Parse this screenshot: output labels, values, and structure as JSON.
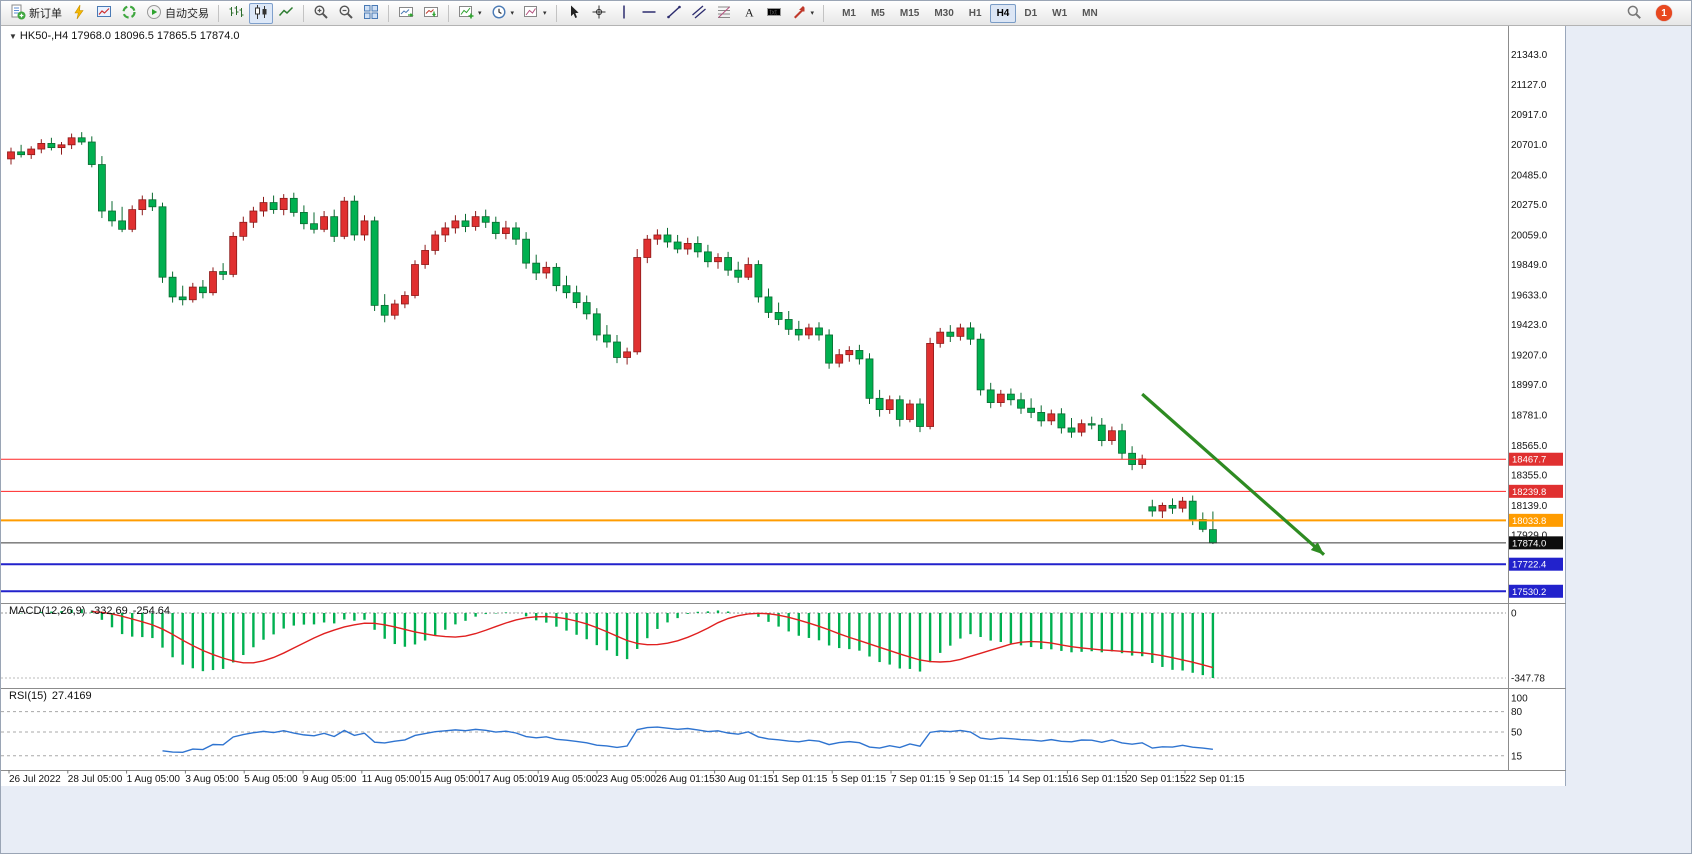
{
  "toolbar": {
    "new_order_label": "新订单",
    "auto_trading_label": "自动交易",
    "timeframes": [
      "M1",
      "M5",
      "M15",
      "M30",
      "H1",
      "H4",
      "D1",
      "W1",
      "MN"
    ],
    "active_timeframe": "H4",
    "notification_count": "1"
  },
  "chart": {
    "header": "HK50-,H4 17968.0 18096.5 17865.5 17874.0"
  },
  "chart_data": {
    "type": "candlestick",
    "symbol": "HK50-",
    "timeframe": "H4",
    "title": "HK50-,H4",
    "current_bar": {
      "open": 17968.0,
      "high": 18096.5,
      "low": 17865.5,
      "close": 17874.0
    },
    "bull_color": "#e03030",
    "bear_color": "#00b050",
    "background": "#ffffff",
    "price_axis_labels": [
      21343.0,
      21127.0,
      20917.0,
      20701.0,
      20485.0,
      20275.0,
      20059.0,
      19849.0,
      19633.0,
      19423.0,
      19207.0,
      18997.0,
      18781.0,
      18565.0,
      18355.0,
      18139.0,
      17929.0
    ],
    "time_axis_labels": [
      "26 Jul 2022",
      "28 Jul 05:00",
      "1 Aug 05:00",
      "3 Aug 05:00",
      "5 Aug 05:00",
      "9 Aug 05:00",
      "11 Aug 05:00",
      "15 Aug 05:00",
      "17 Aug 05:00",
      "19 Aug 05:00",
      "23 Aug 05:00",
      "26 Aug 01:15",
      "30 Aug 01:15",
      "1 Sep 01:15",
      "5 Sep 01:15",
      "7 Sep 01:15",
      "9 Sep 01:15",
      "14 Sep 01:15",
      "16 Sep 01:15",
      "20 Sep 01:15",
      "22 Sep 01:15"
    ],
    "candles": [
      [
        20600,
        20680,
        20560,
        20650
      ],
      [
        20650,
        20700,
        20610,
        20630
      ],
      [
        20630,
        20690,
        20600,
        20670
      ],
      [
        20670,
        20740,
        20640,
        20710
      ],
      [
        20710,
        20750,
        20660,
        20680
      ],
      [
        20680,
        20720,
        20630,
        20700
      ],
      [
        20700,
        20780,
        20670,
        20750
      ],
      [
        20750,
        20790,
        20700,
        20720
      ],
      [
        20720,
        20760,
        20540,
        20560
      ],
      [
        20560,
        20620,
        20180,
        20230
      ],
      [
        20230,
        20300,
        20120,
        20160
      ],
      [
        20160,
        20260,
        20080,
        20100
      ],
      [
        20100,
        20270,
        20080,
        20240
      ],
      [
        20240,
        20340,
        20200,
        20310
      ],
      [
        20310,
        20360,
        20230,
        20260
      ],
      [
        20260,
        20290,
        19720,
        19760
      ],
      [
        19760,
        19800,
        19580,
        19620
      ],
      [
        19620,
        19700,
        19560,
        19600
      ],
      [
        19600,
        19720,
        19580,
        19690
      ],
      [
        19690,
        19740,
        19610,
        19650
      ],
      [
        19650,
        19830,
        19630,
        19800
      ],
      [
        19800,
        19860,
        19740,
        19780
      ],
      [
        19780,
        20080,
        19760,
        20050
      ],
      [
        20050,
        20190,
        20020,
        20150
      ],
      [
        20150,
        20260,
        20110,
        20230
      ],
      [
        20230,
        20330,
        20190,
        20290
      ],
      [
        20290,
        20340,
        20210,
        20240
      ],
      [
        20240,
        20350,
        20200,
        20320
      ],
      [
        20320,
        20360,
        20190,
        20220
      ],
      [
        20220,
        20270,
        20100,
        20140
      ],
      [
        20140,
        20220,
        20070,
        20100
      ],
      [
        20100,
        20230,
        20080,
        20190
      ],
      [
        20190,
        20240,
        20010,
        20050
      ],
      [
        20050,
        20330,
        20030,
        20300
      ],
      [
        20300,
        20340,
        20020,
        20060
      ],
      [
        20060,
        20200,
        20020,
        20160
      ],
      [
        20160,
        20190,
        19520,
        19560
      ],
      [
        19560,
        19640,
        19440,
        19490
      ],
      [
        19490,
        19600,
        19460,
        19570
      ],
      [
        19570,
        19660,
        19540,
        19630
      ],
      [
        19630,
        19880,
        19610,
        19850
      ],
      [
        19850,
        19990,
        19820,
        19950
      ],
      [
        19950,
        20090,
        19920,
        20060
      ],
      [
        20060,
        20150,
        20010,
        20110
      ],
      [
        20110,
        20200,
        20070,
        20160
      ],
      [
        20160,
        20210,
        20080,
        20120
      ],
      [
        20120,
        20230,
        20090,
        20190
      ],
      [
        20190,
        20240,
        20110,
        20150
      ],
      [
        20150,
        20190,
        20030,
        20070
      ],
      [
        20070,
        20160,
        20030,
        20110
      ],
      [
        20110,
        20150,
        19990,
        20030
      ],
      [
        20030,
        20080,
        19820,
        19860
      ],
      [
        19860,
        19920,
        19740,
        19790
      ],
      [
        19790,
        19870,
        19750,
        19830
      ],
      [
        19830,
        19860,
        19660,
        19700
      ],
      [
        19700,
        19770,
        19610,
        19650
      ],
      [
        19650,
        19700,
        19540,
        19580
      ],
      [
        19580,
        19630,
        19460,
        19500
      ],
      [
        19500,
        19540,
        19310,
        19350
      ],
      [
        19350,
        19420,
        19260,
        19300
      ],
      [
        19300,
        19350,
        19150,
        19190
      ],
      [
        19190,
        19260,
        19140,
        19230
      ],
      [
        19230,
        19960,
        19210,
        19900
      ],
      [
        19900,
        20060,
        19860,
        20030
      ],
      [
        20030,
        20100,
        19990,
        20060
      ],
      [
        20060,
        20110,
        19970,
        20010
      ],
      [
        20010,
        20060,
        19930,
        19960
      ],
      [
        19960,
        20040,
        19920,
        20000
      ],
      [
        20000,
        20050,
        19900,
        19940
      ],
      [
        19940,
        19990,
        19830,
        19870
      ],
      [
        19870,
        19930,
        19820,
        19900
      ],
      [
        19900,
        19940,
        19770,
        19810
      ],
      [
        19810,
        19870,
        19720,
        19760
      ],
      [
        19760,
        19900,
        19740,
        19850
      ],
      [
        19850,
        19880,
        19580,
        19620
      ],
      [
        19620,
        19680,
        19470,
        19510
      ],
      [
        19510,
        19580,
        19420,
        19460
      ],
      [
        19460,
        19520,
        19350,
        19390
      ],
      [
        19390,
        19450,
        19310,
        19350
      ],
      [
        19350,
        19430,
        19320,
        19400
      ],
      [
        19400,
        19440,
        19310,
        19350
      ],
      [
        19350,
        19390,
        19110,
        19150
      ],
      [
        19150,
        19250,
        19120,
        19210
      ],
      [
        19210,
        19270,
        19160,
        19240
      ],
      [
        19240,
        19280,
        19140,
        19180
      ],
      [
        19180,
        19220,
        18860,
        18900
      ],
      [
        18900,
        18960,
        18770,
        18820
      ],
      [
        18820,
        18920,
        18790,
        18890
      ],
      [
        18890,
        18920,
        18700,
        18750
      ],
      [
        18750,
        18890,
        18730,
        18860
      ],
      [
        18860,
        18900,
        18660,
        18700
      ],
      [
        18700,
        19330,
        18680,
        19290
      ],
      [
        19290,
        19400,
        19260,
        19370
      ],
      [
        19370,
        19420,
        19300,
        19340
      ],
      [
        19340,
        19430,
        19310,
        19400
      ],
      [
        19400,
        19440,
        19280,
        19320
      ],
      [
        19320,
        19360,
        18920,
        18960
      ],
      [
        18960,
        19010,
        18830,
        18870
      ],
      [
        18870,
        18960,
        18840,
        18930
      ],
      [
        18930,
        18970,
        18850,
        18890
      ],
      [
        18890,
        18940,
        18790,
        18830
      ],
      [
        18830,
        18900,
        18760,
        18800
      ],
      [
        18800,
        18850,
        18700,
        18740
      ],
      [
        18740,
        18820,
        18710,
        18790
      ],
      [
        18790,
        18830,
        18650,
        18690
      ],
      [
        18690,
        18760,
        18620,
        18660
      ],
      [
        18660,
        18750,
        18630,
        18720
      ],
      [
        18720,
        18770,
        18680,
        18710
      ],
      [
        18710,
        18760,
        18560,
        18600
      ],
      [
        18600,
        18700,
        18570,
        18670
      ],
      [
        18670,
        18720,
        18470,
        18510
      ],
      [
        18510,
        18560,
        18390,
        18430
      ],
      [
        18430,
        18500,
        18400,
        18470
      ],
      [
        18130,
        18180,
        18060,
        18100
      ],
      [
        18100,
        18160,
        18050,
        18140
      ],
      [
        18140,
        18190,
        18080,
        18120
      ],
      [
        18120,
        18200,
        18090,
        18170
      ],
      [
        18170,
        18210,
        18000,
        18040
      ],
      [
        18040,
        18090,
        17950,
        17970
      ],
      [
        17968,
        18096.5,
        17865.5,
        17874
      ]
    ],
    "hlines": [
      {
        "price": 18467.7,
        "label": "18467.7",
        "color": "#ff2525",
        "width": 1,
        "badge_color": "#e03030"
      },
      {
        "price": 18239.8,
        "label": "18239.8",
        "color": "#ff2525",
        "width": 1,
        "badge_color": "#e03030"
      },
      {
        "price": 18033.8,
        "label": "18033.8",
        "color": "#ff9c00",
        "width": 2,
        "badge_color": "#ff9c00"
      },
      {
        "price": 17874.0,
        "label": "17874.0",
        "color": "#3a3a3a",
        "width": 1,
        "badge_color": "#0d0d0d"
      },
      {
        "price": 17722.4,
        "label": "17722.4",
        "color": "#2222cc",
        "width": 2,
        "badge_color": "#2222cc"
      },
      {
        "price": 17530.2,
        "label": "17530.2",
        "color": "#2222cc",
        "width": 2,
        "badge_color": "#2222cc"
      }
    ],
    "trend_arrow": {
      "from_bar": 112,
      "from_price": 18930,
      "to_bar": 130,
      "to_price": 17790,
      "color": "#2e8b22"
    },
    "indicators": {
      "macd": {
        "name": "MACD(12,26,9)",
        "value_main": "-332.69",
        "value_signal": "-254.64",
        "scale_top": "0",
        "scale_bottom": "-347.78",
        "histogram_color": "#00b050",
        "signal_color": "#e02020"
      },
      "rsi": {
        "name": "RSI(15)",
        "value": "27.4169",
        "scale_labels": [
          "100",
          "80",
          "50",
          "15"
        ],
        "levels": [
          80,
          50,
          15
        ],
        "line_color": "#2f74d0"
      }
    }
  }
}
